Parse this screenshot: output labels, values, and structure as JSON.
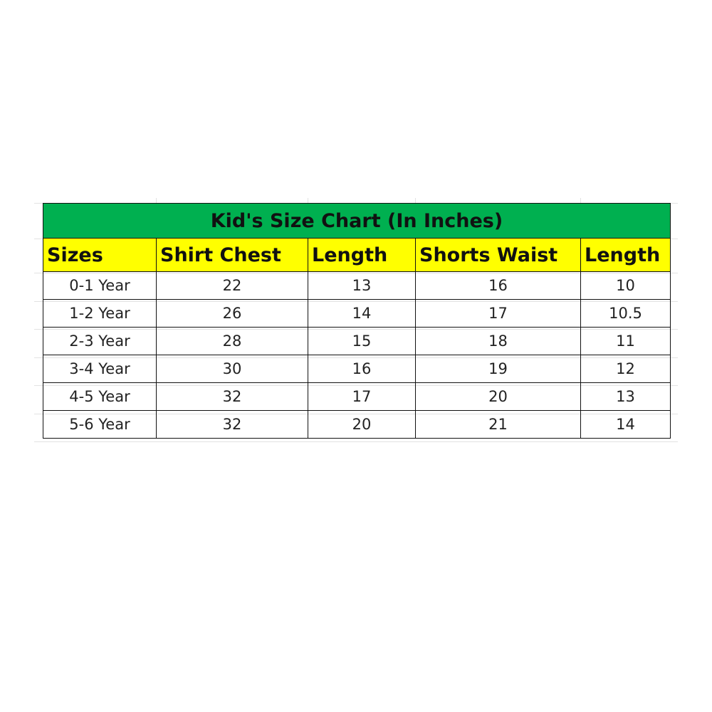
{
  "title": "Kid's Size Chart (In Inches)",
  "colors": {
    "title_bg": "#00b050",
    "header_bg": "#ffff00"
  },
  "headers": [
    "Sizes",
    "Shirt Chest",
    "Length",
    "Shorts Waist",
    "Length"
  ],
  "rows": [
    [
      "0-1 Year",
      "22",
      "13",
      "16",
      "10"
    ],
    [
      "1-2 Year",
      "26",
      "14",
      "17",
      "10.5"
    ],
    [
      "2-3 Year",
      "28",
      "15",
      "18",
      "11"
    ],
    [
      "3-4 Year",
      "30",
      "16",
      "19",
      "12"
    ],
    [
      "4-5 Year",
      "32",
      "17",
      "20",
      "13"
    ],
    [
      "5-6 Year",
      "32",
      "20",
      "21",
      "14"
    ]
  ]
}
